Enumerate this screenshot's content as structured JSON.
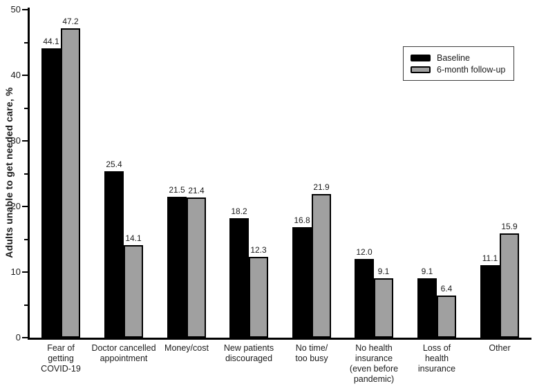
{
  "chart_data": {
    "type": "bar",
    "title": "",
    "xlabel": "",
    "ylabel": "Adults unable to get needed care, %",
    "ylim": [
      0,
      50
    ],
    "yticks_major": [
      0,
      10,
      20,
      30,
      40,
      50
    ],
    "yticks_minor": [
      5,
      15,
      25,
      35,
      45
    ],
    "grid": false,
    "legend_position": "top-right",
    "categories": [
      "Fear of\ngetting\nCOVID-19",
      "Doctor cancelled\nappointment",
      "Money/cost",
      "New patients\ndiscouraged",
      "No time/\ntoo busy",
      "No health\ninsurance\n(even before\npandemic)",
      "Loss of\nhealth\ninsurance",
      "Other"
    ],
    "series": [
      {
        "name": "Baseline",
        "color": "#000000",
        "values": [
          44.1,
          25.4,
          21.5,
          18.2,
          16.8,
          12.0,
          9.1,
          11.1
        ]
      },
      {
        "name": "6-month follow-up",
        "color": "#a0a0a0",
        "values": [
          47.2,
          14.1,
          21.4,
          12.3,
          21.9,
          9.1,
          6.4,
          15.9
        ]
      }
    ]
  },
  "colors": {
    "bar_black": "#000000",
    "bar_gray": "#a0a0a0",
    "axis": "#000000",
    "legend_border": "#3d3d3d",
    "background": "#ffffff"
  }
}
